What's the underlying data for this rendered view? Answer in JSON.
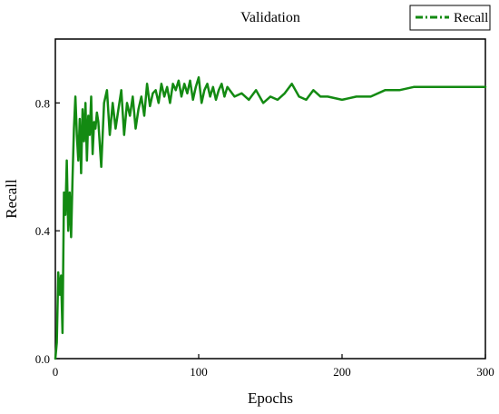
{
  "chart_data": {
    "type": "line",
    "title": "Validation",
    "xlabel": "Epochs",
    "ylabel": "Recall",
    "xlim": [
      0,
      300
    ],
    "ylim": [
      0,
      1.0
    ],
    "x_ticks": [
      0,
      100,
      200,
      300
    ],
    "x_tick_labels": [
      "0",
      "100",
      "200",
      "300"
    ],
    "y_ticks": [
      0.0,
      0.4,
      0.8
    ],
    "y_tick_labels": [
      "0.0",
      "0.4",
      "0.8"
    ],
    "grid": false,
    "legend_position": "top-right",
    "series": [
      {
        "name": "Recall",
        "color": "#138a12",
        "line_style": "solid",
        "legend_line_style": "dash-dot",
        "x": [
          0,
          1,
          2,
          3,
          4,
          5,
          6,
          7,
          8,
          9,
          10,
          11,
          12,
          13,
          14,
          15,
          16,
          17,
          18,
          19,
          20,
          21,
          22,
          23,
          24,
          25,
          26,
          27,
          28,
          29,
          30,
          32,
          34,
          36,
          38,
          40,
          42,
          44,
          46,
          48,
          50,
          52,
          54,
          56,
          58,
          60,
          62,
          64,
          66,
          68,
          70,
          72,
          74,
          76,
          78,
          80,
          82,
          84,
          86,
          88,
          90,
          92,
          94,
          96,
          98,
          100,
          102,
          104,
          106,
          108,
          110,
          112,
          114,
          116,
          118,
          120,
          125,
          130,
          135,
          140,
          145,
          150,
          155,
          160,
          165,
          170,
          175,
          180,
          185,
          190,
          200,
          210,
          220,
          230,
          240,
          250,
          260,
          270,
          280,
          290,
          300
        ],
        "y": [
          0.0,
          0.05,
          0.27,
          0.2,
          0.26,
          0.08,
          0.52,
          0.45,
          0.62,
          0.4,
          0.52,
          0.38,
          0.57,
          0.72,
          0.82,
          0.7,
          0.62,
          0.75,
          0.58,
          0.78,
          0.68,
          0.8,
          0.62,
          0.76,
          0.7,
          0.82,
          0.64,
          0.74,
          0.72,
          0.77,
          0.74,
          0.6,
          0.8,
          0.84,
          0.7,
          0.8,
          0.72,
          0.78,
          0.84,
          0.7,
          0.8,
          0.76,
          0.82,
          0.72,
          0.78,
          0.82,
          0.76,
          0.86,
          0.79,
          0.83,
          0.84,
          0.8,
          0.86,
          0.82,
          0.85,
          0.8,
          0.86,
          0.84,
          0.87,
          0.82,
          0.86,
          0.83,
          0.87,
          0.81,
          0.85,
          0.88,
          0.8,
          0.84,
          0.86,
          0.82,
          0.85,
          0.81,
          0.84,
          0.86,
          0.82,
          0.85,
          0.82,
          0.83,
          0.81,
          0.84,
          0.8,
          0.82,
          0.81,
          0.83,
          0.86,
          0.82,
          0.81,
          0.84,
          0.82,
          0.82,
          0.81,
          0.82,
          0.82,
          0.84,
          0.84,
          0.85,
          0.85,
          0.85,
          0.85,
          0.85,
          0.85
        ]
      }
    ]
  }
}
